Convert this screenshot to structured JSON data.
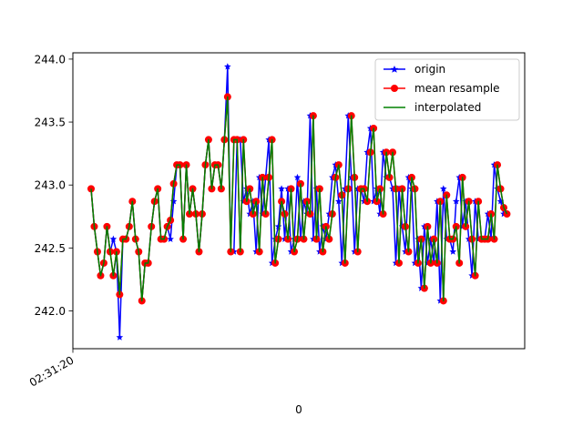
{
  "chart_data": {
    "type": "line",
    "title": "",
    "xlabel": "0",
    "ylabel": "",
    "x_tick_labels": [
      "02:31:20"
    ],
    "y_ticks": [
      242.0,
      242.5,
      243.0,
      243.5,
      244.0
    ],
    "y_tick_labels": [
      "242.0",
      "242.5",
      "243.0",
      "243.5",
      "244.0"
    ],
    "ylim": [
      241.7,
      244.05
    ],
    "grid": false,
    "legend": "top-right",
    "series": [
      {
        "name": "origin",
        "color": "#0000ff",
        "marker": "star",
        "values": [
          242.97,
          242.67,
          242.47,
          242.28,
          242.38,
          242.67,
          242.47,
          242.57,
          242.47,
          241.79,
          242.57,
          242.57,
          242.67,
          242.87,
          242.57,
          242.47,
          242.08,
          242.38,
          242.38,
          242.67,
          242.87,
          242.97,
          242.57,
          242.57,
          242.67,
          242.57,
          242.87,
          243.16,
          243.16,
          242.57,
          243.16,
          242.77,
          242.97,
          242.77,
          242.47,
          242.77,
          243.16,
          243.36,
          242.97,
          243.16,
          243.16,
          242.97,
          243.36,
          243.94,
          242.47,
          242.47,
          243.36,
          243.36,
          242.87,
          242.97,
          242.77,
          242.87,
          242.47,
          243.06,
          242.77,
          243.06,
          243.36,
          242.38,
          242.57,
          242.67,
          242.97,
          242.57,
          242.97,
          242.47,
          242.57,
          243.06,
          242.57,
          242.87,
          242.77,
          243.55,
          242.57,
          242.97,
          242.47,
          242.67,
          242.57,
          242.77,
          243.06,
          243.16,
          242.87,
          242.38,
          242.97,
          243.55,
          243.06,
          242.47,
          242.97,
          242.97,
          242.87,
          243.26,
          243.45,
          242.87,
          242.97,
          242.77,
          243.26,
          243.06,
          243.06,
          242.97,
          242.38,
          242.97,
          242.67,
          242.47,
          243.06,
          242.97,
          242.38,
          242.57,
          242.18,
          242.67,
          242.38,
          242.57,
          242.38,
          242.87,
          242.08,
          242.97,
          242.57,
          242.57,
          242.47,
          242.87,
          243.06,
          242.67,
          242.87,
          242.57,
          242.28,
          242.87,
          242.57,
          242.57,
          242.57,
          242.77,
          242.57,
          243.16,
          242.97,
          242.87,
          242.77
        ]
      },
      {
        "name": "mean resample",
        "color": "#ff0000",
        "marker": "circle",
        "values": [
          242.97,
          242.67,
          242.47,
          242.28,
          242.38,
          242.67,
          242.47,
          242.28,
          242.47,
          242.13,
          242.57,
          242.57,
          242.67,
          242.87,
          242.57,
          242.47,
          242.08,
          242.38,
          242.38,
          242.67,
          242.87,
          242.97,
          242.57,
          242.57,
          242.67,
          242.72,
          243.01,
          243.16,
          243.16,
          242.57,
          243.16,
          242.77,
          242.97,
          242.77,
          242.47,
          242.77,
          243.16,
          243.36,
          242.97,
          243.16,
          243.16,
          242.97,
          243.36,
          243.7,
          242.47,
          243.36,
          243.36,
          242.47,
          243.36,
          242.87,
          242.97,
          242.77,
          242.87,
          242.47,
          243.06,
          242.77,
          243.06,
          243.36,
          242.38,
          242.57,
          242.87,
          242.77,
          242.57,
          242.97,
          242.47,
          242.57,
          243.01,
          242.57,
          242.87,
          242.77,
          243.55,
          242.57,
          242.97,
          242.47,
          242.67,
          242.57,
          242.77,
          243.06,
          243.16,
          242.92,
          242.38,
          242.97,
          243.55,
          243.06,
          242.47,
          242.97,
          242.97,
          242.87,
          243.26,
          243.45,
          242.87,
          242.97,
          242.77,
          243.26,
          243.06,
          243.26,
          242.97,
          242.38,
          242.97,
          242.67,
          242.47,
          243.06,
          242.97,
          242.38,
          242.57,
          242.18,
          242.67,
          242.38,
          242.57,
          242.38,
          242.87,
          242.08,
          242.92,
          242.57,
          242.57,
          242.67,
          242.38,
          243.06,
          242.67,
          242.87,
          242.57,
          242.28,
          242.87,
          242.57,
          242.57,
          242.57,
          242.77,
          242.57,
          243.16,
          242.97,
          242.82,
          242.77
        ]
      },
      {
        "name": "interpolated",
        "color": "#008000",
        "marker": "none",
        "values": [
          242.97,
          242.67,
          242.47,
          242.28,
          242.38,
          242.67,
          242.47,
          242.28,
          242.47,
          242.13,
          242.57,
          242.57,
          242.67,
          242.87,
          242.57,
          242.47,
          242.08,
          242.38,
          242.38,
          242.67,
          242.87,
          242.97,
          242.57,
          242.57,
          242.67,
          242.72,
          243.01,
          243.16,
          243.16,
          242.57,
          243.16,
          242.77,
          242.97,
          242.77,
          242.47,
          242.77,
          243.16,
          243.36,
          242.97,
          243.16,
          243.16,
          242.97,
          243.36,
          243.7,
          242.47,
          243.36,
          243.36,
          242.47,
          243.36,
          242.87,
          242.97,
          242.77,
          242.87,
          242.47,
          243.06,
          242.77,
          243.06,
          243.36,
          242.38,
          242.57,
          242.87,
          242.77,
          242.57,
          242.97,
          242.47,
          242.57,
          243.01,
          242.57,
          242.87,
          242.77,
          243.55,
          242.57,
          242.97,
          242.47,
          242.67,
          242.57,
          242.77,
          243.06,
          243.16,
          242.92,
          242.38,
          242.97,
          243.55,
          243.06,
          242.47,
          242.97,
          242.97,
          242.87,
          243.26,
          243.45,
          242.87,
          242.97,
          242.77,
          243.26,
          243.06,
          243.26,
          242.97,
          242.38,
          242.97,
          242.67,
          242.47,
          243.06,
          242.97,
          242.38,
          242.57,
          242.18,
          242.67,
          242.38,
          242.57,
          242.38,
          242.87,
          242.08,
          242.92,
          242.57,
          242.57,
          242.67,
          242.38,
          243.06,
          242.67,
          242.87,
          242.57,
          242.28,
          242.87,
          242.57,
          242.57,
          242.57,
          242.77,
          242.57,
          243.16,
          242.97,
          242.82,
          242.77
        ]
      }
    ]
  }
}
